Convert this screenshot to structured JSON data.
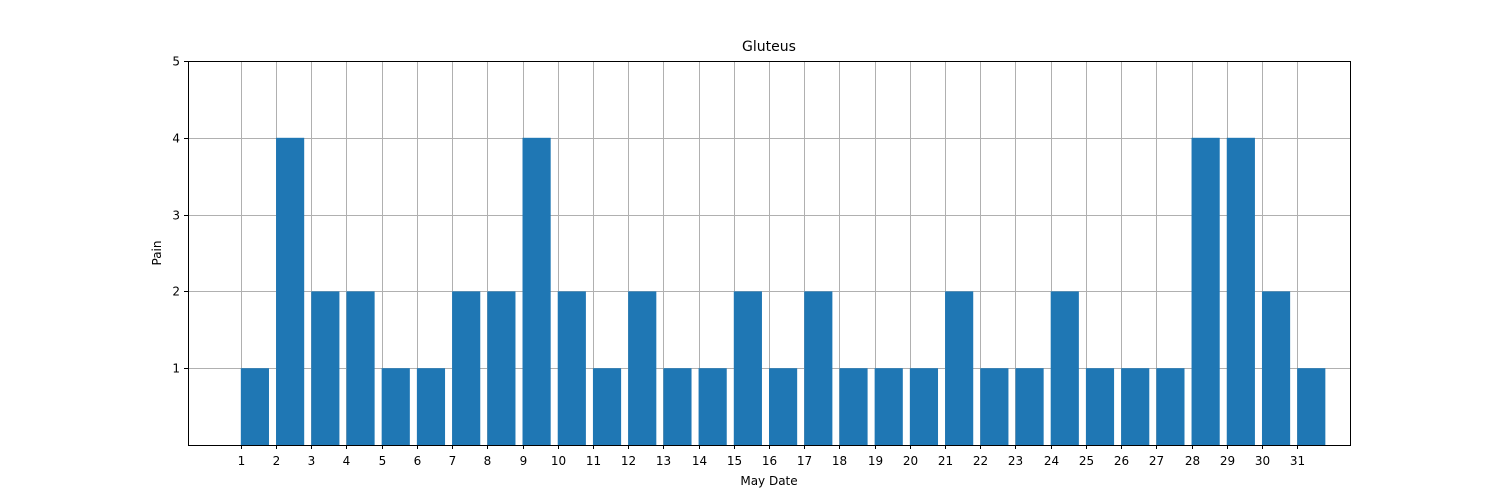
{
  "chart_data": {
    "type": "bar",
    "title": "Gluteus",
    "xlabel": "May Date",
    "ylabel": "Pain",
    "categories": [
      "1",
      "2",
      "3",
      "4",
      "5",
      "6",
      "7",
      "8",
      "9",
      "10",
      "11",
      "12",
      "13",
      "14",
      "15",
      "16",
      "17",
      "18",
      "19",
      "20",
      "21",
      "22",
      "23",
      "24",
      "25",
      "26",
      "27",
      "28",
      "29",
      "30",
      "31"
    ],
    "values": [
      1,
      4,
      2,
      2,
      1,
      1,
      2,
      2,
      4,
      2,
      1,
      2,
      1,
      1,
      2,
      1,
      2,
      1,
      1,
      1,
      2,
      1,
      1,
      2,
      1,
      1,
      1,
      4,
      4,
      2,
      1
    ],
    "ylim": [
      0,
      5
    ],
    "yticks": [
      1,
      2,
      3,
      4,
      5
    ],
    "xlim": [
      -0.5,
      32.5
    ],
    "grid": true,
    "bar_color": "#1f77b4",
    "grid_color": "#b0b0b0"
  }
}
